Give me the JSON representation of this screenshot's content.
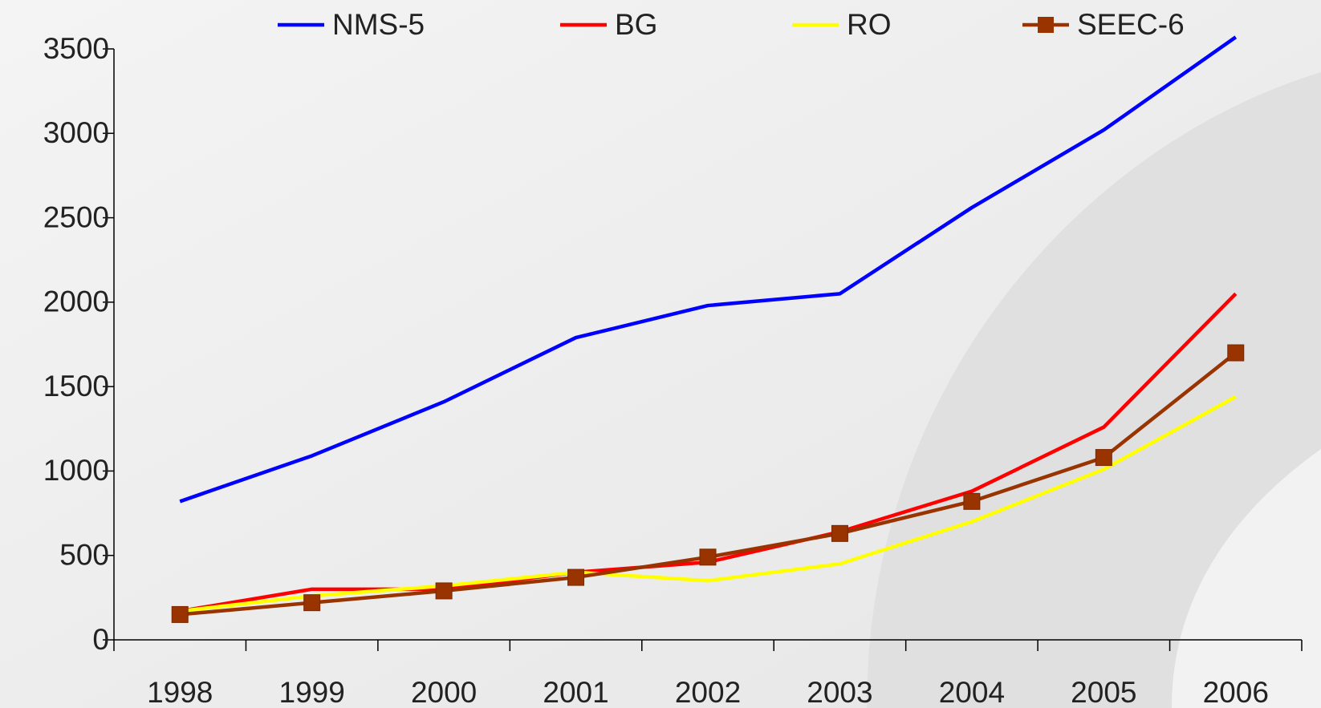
{
  "chart_data": {
    "type": "line",
    "categories": [
      "1998",
      "1999",
      "2000",
      "2001",
      "2002",
      "2003",
      "2004",
      "2005",
      "2006"
    ],
    "series": [
      {
        "name": "NMS-5",
        "color": "#0000ff",
        "values": [
          820,
          1090,
          1410,
          1790,
          1980,
          2050,
          2560,
          3020,
          3570
        ]
      },
      {
        "name": "BG",
        "color": "#ff0000",
        "values": [
          170,
          300,
          300,
          400,
          460,
          640,
          880,
          1260,
          2050
        ]
      },
      {
        "name": "RO",
        "color": "#ffff00",
        "values": [
          170,
          260,
          320,
          400,
          350,
          450,
          700,
          1010,
          1440
        ]
      },
      {
        "name": "SEEC-6",
        "color": "#993300",
        "marker": "square",
        "values": [
          150,
          220,
          290,
          370,
          490,
          630,
          820,
          1080,
          1700
        ]
      }
    ],
    "ylim": [
      0,
      3500
    ],
    "yticks": [
      0,
      500,
      1000,
      1500,
      2000,
      2500,
      3000,
      3500
    ],
    "legend": "top"
  }
}
